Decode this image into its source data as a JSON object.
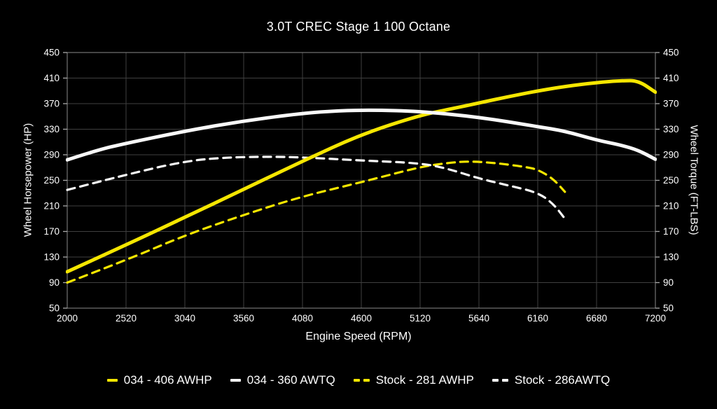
{
  "title": "3.0T CREC Stage 1 100 Octane",
  "axes": {
    "left_label": "Wheel Horsepower (HP)",
    "right_label": "Wheel Torque (FT-LBS)",
    "x_label": "Engine Speed (RPM)"
  },
  "colors": {
    "background": "#000000",
    "accent_yellow": "#f5e600",
    "curve_white": "#f8f8f8",
    "grid": "#3f3f3f",
    "border": "#8a8a8a",
    "tick": "#aaaaaa",
    "text": "#ffffff"
  },
  "legend": [
    {
      "label": "034 - 406 AWHP",
      "color": "#f5e600",
      "style": "solid"
    },
    {
      "label": "034 - 360 AWTQ",
      "color": "#f8f8f8",
      "style": "solid"
    },
    {
      "label": "Stock - 281 AWHP",
      "color": "#f5e600",
      "style": "dashed"
    },
    {
      "label": "Stock - 286AWTQ",
      "color": "#f8f8f8",
      "style": "dashed"
    }
  ],
  "chart_data": {
    "type": "line",
    "title": "3.0T CREC Stage 1 100 Octane",
    "xlabel": "Engine Speed (RPM)",
    "ylabel_left": "Wheel Horsepower (HP)",
    "ylabel_right": "Wheel Torque (FT-LBS)",
    "xlim": [
      2000,
      7200
    ],
    "ylim": [
      50,
      450
    ],
    "x_ticks": [
      2000,
      2520,
      3040,
      3560,
      4080,
      4600,
      5120,
      5640,
      6160,
      6680,
      7200
    ],
    "y_ticks": [
      50,
      90,
      130,
      170,
      210,
      250,
      290,
      330,
      370,
      410,
      450
    ],
    "grid": true,
    "legend_position": "bottom",
    "series": [
      {
        "name": "034 - 406 AWHP",
        "unit": "HP",
        "color": "#f5e600",
        "style": "solid",
        "width": 5,
        "points": [
          [
            2000,
            107
          ],
          [
            2520,
            149
          ],
          [
            3040,
            192
          ],
          [
            3560,
            236
          ],
          [
            4080,
            280
          ],
          [
            4600,
            322
          ],
          [
            5120,
            352
          ],
          [
            5400,
            362
          ],
          [
            5640,
            371
          ],
          [
            5900,
            381
          ],
          [
            6160,
            390
          ],
          [
            6400,
            397
          ],
          [
            6680,
            403
          ],
          [
            6900,
            406
          ],
          [
            7050,
            406
          ],
          [
            7200,
            388
          ]
        ]
      },
      {
        "name": "034 - 360 AWTQ",
        "unit": "FT-LBS",
        "color": "#f8f8f8",
        "style": "solid",
        "width": 5,
        "points": [
          [
            2000,
            282
          ],
          [
            2260,
            297
          ],
          [
            2520,
            308
          ],
          [
            3040,
            327
          ],
          [
            3560,
            343
          ],
          [
            4080,
            355
          ],
          [
            4400,
            359
          ],
          [
            4700,
            360
          ],
          [
            5120,
            358
          ],
          [
            5640,
            349
          ],
          [
            6160,
            334
          ],
          [
            6400,
            327
          ],
          [
            6680,
            313
          ],
          [
            6900,
            305
          ],
          [
            7050,
            297
          ],
          [
            7200,
            283
          ]
        ]
      },
      {
        "name": "Stock - 281 AWHP",
        "unit": "HP",
        "color": "#f5e600",
        "style": "dashed",
        "width": 3.2,
        "points": [
          [
            2000,
            90
          ],
          [
            2520,
            125
          ],
          [
            3040,
            164
          ],
          [
            3560,
            196
          ],
          [
            4080,
            225
          ],
          [
            4600,
            247
          ],
          [
            5120,
            271
          ],
          [
            5350,
            277
          ],
          [
            5550,
            280
          ],
          [
            5800,
            277
          ],
          [
            6050,
            271
          ],
          [
            6160,
            267
          ],
          [
            6300,
            252
          ],
          [
            6400,
            232
          ]
        ]
      },
      {
        "name": "Stock - 286AWTQ",
        "unit": "FT-LBS",
        "color": "#f8f8f8",
        "style": "dashed",
        "width": 3.2,
        "points": [
          [
            2000,
            235
          ],
          [
            2520,
            259
          ],
          [
            3040,
            280
          ],
          [
            3400,
            286
          ],
          [
            3800,
            287
          ],
          [
            4080,
            286
          ],
          [
            4600,
            281
          ],
          [
            5120,
            277
          ],
          [
            5350,
            269
          ],
          [
            5640,
            253
          ],
          [
            5900,
            242
          ],
          [
            6160,
            231
          ],
          [
            6300,
            213
          ],
          [
            6400,
            190
          ]
        ]
      }
    ]
  }
}
